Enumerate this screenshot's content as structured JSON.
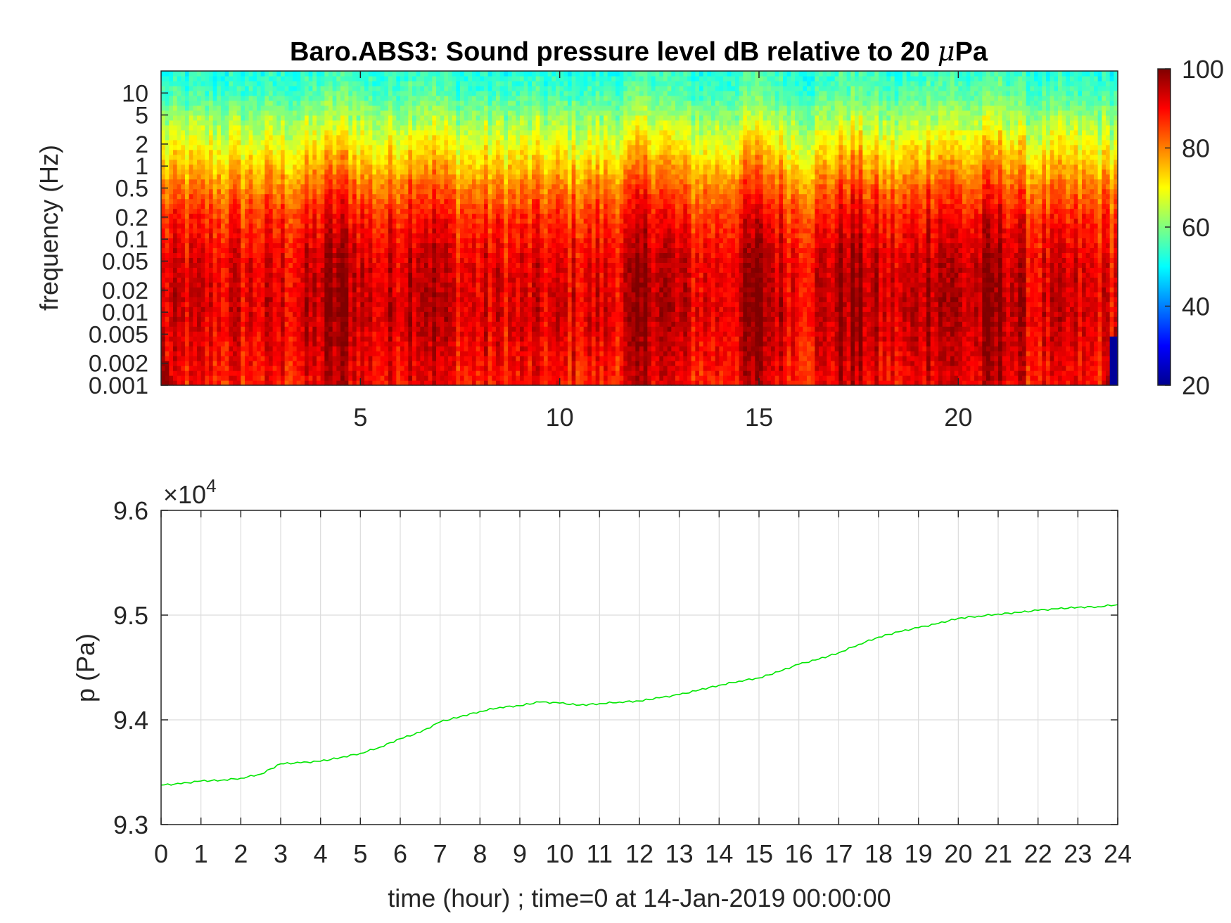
{
  "chart_data": [
    {
      "type": "heatmap",
      "title": "Baro.ABS3: Sound pressure level dB relative to 20 μPa",
      "title_main": "Baro.ABS3: Sound pressure level dB relative to 20 ",
      "title_mu": "μ",
      "title_unit": "Pa",
      "xlabel": "",
      "ylabel": "frequency (Hz)",
      "x_ticks": [
        5,
        10,
        15,
        20
      ],
      "xlim": [
        0,
        24
      ],
      "y_scale": "log",
      "ylim": [
        0.001,
        20
      ],
      "y_ticks": [
        {
          "value": 0.001,
          "label": "0.001"
        },
        {
          "value": 0.002,
          "label": "0.002"
        },
        {
          "value": 0.005,
          "label": "0.005"
        },
        {
          "value": 0.01,
          "label": "0.01"
        },
        {
          "value": 0.02,
          "label": "0.02"
        },
        {
          "value": 0.05,
          "label": "0.05"
        },
        {
          "value": 0.1,
          "label": "0.1"
        },
        {
          "value": 0.2,
          "label": "0.2"
        },
        {
          "value": 0.5,
          "label": "0.5"
        },
        {
          "value": 1,
          "label": "1"
        },
        {
          "value": 2,
          "label": "2"
        },
        {
          "value": 5,
          "label": "5"
        },
        {
          "value": 10,
          "label": "10"
        }
      ],
      "colormap": "jet",
      "clim": [
        20,
        100
      ],
      "colorbar": {
        "position": "right",
        "ticks": [
          20,
          40,
          60,
          80,
          100
        ],
        "tick_labels": [
          "20",
          "40",
          "60",
          "80",
          "100"
        ]
      },
      "level_profile_db": [
        {
          "hz": 0.001,
          "db": 88
        },
        {
          "hz": 0.003,
          "db": 90
        },
        {
          "hz": 0.01,
          "db": 92
        },
        {
          "hz": 0.05,
          "db": 91
        },
        {
          "hz": 0.2,
          "db": 86
        },
        {
          "hz": 0.5,
          "db": 80
        },
        {
          "hz": 1,
          "db": 74
        },
        {
          "hz": 2,
          "db": 68
        },
        {
          "hz": 5,
          "db": 61
        },
        {
          "hz": 10,
          "db": 55
        },
        {
          "hz": 20,
          "db": 52
        }
      ],
      "high_energy_hours": [
        4.5,
        6.5,
        12.3,
        15.0,
        17.3,
        19.5,
        21.0
      ]
    },
    {
      "type": "line",
      "xlabel": "time (hour) ; time=0 at 14-Jan-2019 00:00:00",
      "ylabel": "p (Pa)",
      "y_multiplier": "×10⁴",
      "y_multiplier_base": "×10",
      "y_multiplier_exp": "4",
      "xlim": [
        0,
        24
      ],
      "ylim": [
        9.3,
        9.6
      ],
      "x_ticks": [
        0,
        1,
        2,
        3,
        4,
        5,
        6,
        7,
        8,
        9,
        10,
        11,
        12,
        13,
        14,
        15,
        16,
        17,
        18,
        19,
        20,
        21,
        22,
        23,
        24
      ],
      "y_ticks": [
        {
          "value": 9.3,
          "label": "9.3"
        },
        {
          "value": 9.4,
          "label": "9.4"
        },
        {
          "value": 9.5,
          "label": "9.5"
        },
        {
          "value": 9.6,
          "label": "9.6"
        }
      ],
      "grid": true,
      "series": [
        {
          "color": "#00e600",
          "x": [
            0,
            0.5,
            1,
            1.5,
            2,
            2.5,
            3,
            3.5,
            4,
            4.5,
            5,
            5.5,
            6,
            6.5,
            7,
            7.5,
            8,
            8.5,
            9,
            9.5,
            10,
            10.5,
            11,
            11.5,
            12,
            12.5,
            13,
            13.5,
            14,
            14.5,
            15,
            15.5,
            16,
            16.5,
            17,
            17.5,
            18,
            18.5,
            19,
            19.5,
            20,
            20.5,
            21,
            21.5,
            22,
            22.5,
            23,
            23.5,
            24
          ],
          "y": [
            9.3377,
            9.339,
            9.3416,
            9.3423,
            9.3443,
            9.3482,
            9.358,
            9.359,
            9.3605,
            9.364,
            9.368,
            9.374,
            9.382,
            9.388,
            9.398,
            9.403,
            9.408,
            9.412,
            9.4135,
            9.417,
            9.416,
            9.414,
            9.4155,
            9.417,
            9.418,
            9.421,
            9.424,
            9.4285,
            9.433,
            9.437,
            9.44,
            9.446,
            9.453,
            9.458,
            9.464,
            9.472,
            9.479,
            9.484,
            9.488,
            9.492,
            9.497,
            9.499,
            9.501,
            9.5025,
            9.5045,
            9.506,
            9.5075,
            9.508,
            9.51
          ]
        }
      ]
    }
  ]
}
